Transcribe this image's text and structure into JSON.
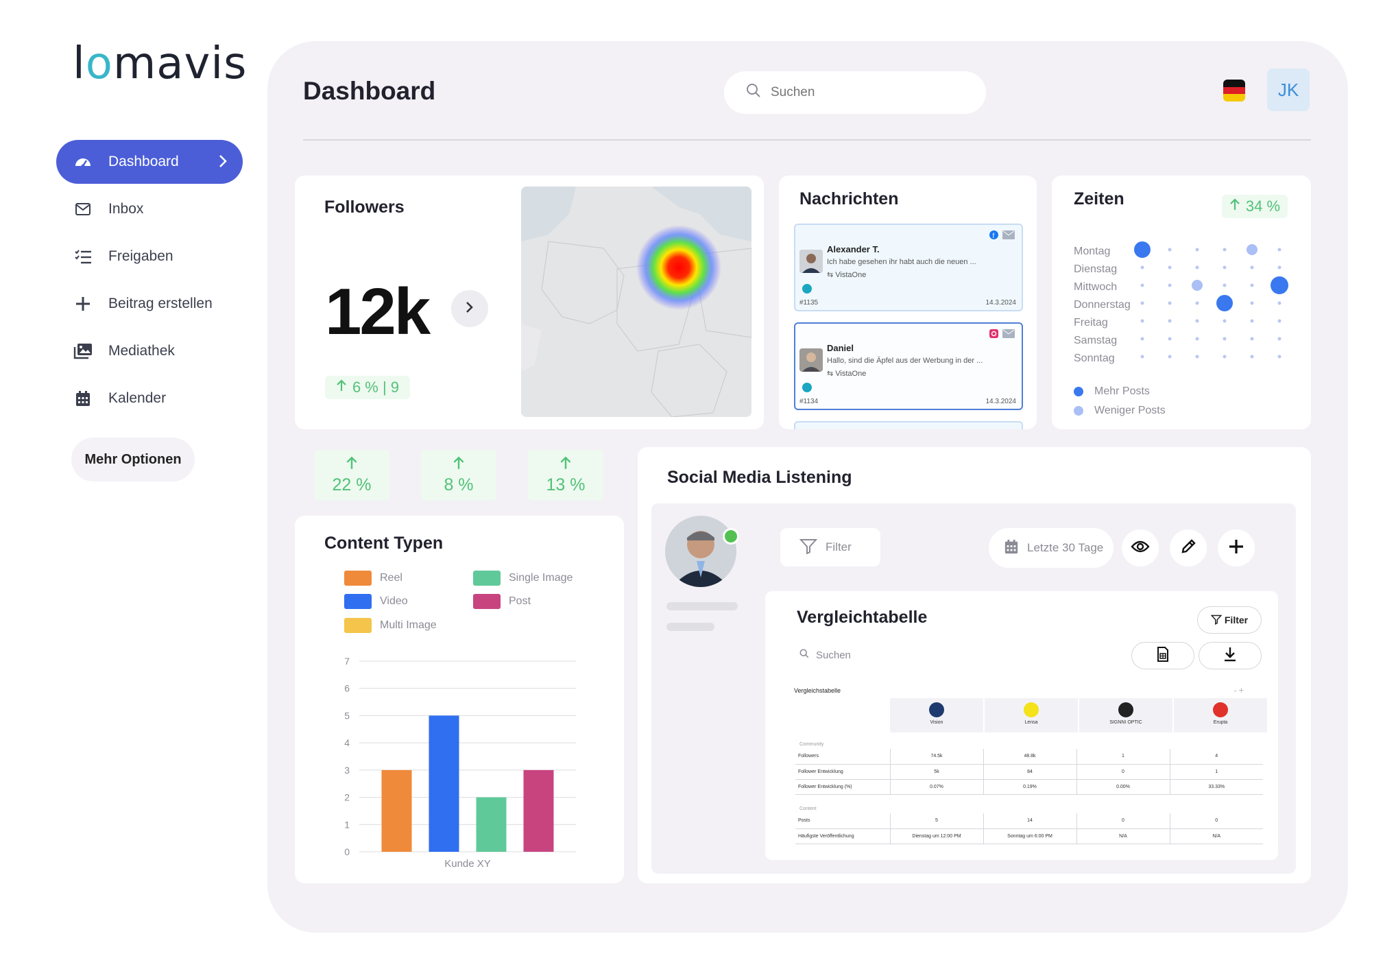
{
  "brand": {
    "logo_text_a": "l",
    "logo_text_o": "o",
    "logo_text_b": "mavis"
  },
  "sidebar": {
    "items": [
      {
        "label": "Dashboard",
        "icon": "gauge-icon",
        "active": true
      },
      {
        "label": "Inbox",
        "icon": "mail-icon"
      },
      {
        "label": "Freigaben",
        "icon": "checklist-icon"
      },
      {
        "label": "Beitrag erstellen",
        "icon": "plus-icon"
      },
      {
        "label": "Mediathek",
        "icon": "gallery-icon"
      },
      {
        "label": "Kalender",
        "icon": "calendar-icon"
      }
    ],
    "more_label": "Mehr Optionen"
  },
  "header": {
    "title": "Dashboard",
    "search_placeholder": "Suchen",
    "user_initials": "JK",
    "language": "de"
  },
  "followers": {
    "title": "Followers",
    "value": "12k",
    "trend": "6 % | 9"
  },
  "stats": [
    "22 %",
    "8 %",
    "13 %"
  ],
  "messages": {
    "title": "Nachrichten",
    "items": [
      {
        "name": "Alexander T.",
        "text": "Ich habe gesehen ihr habt auch die neuen ...",
        "source": "VistaOne",
        "id": "#1135",
        "date": "14.3.2024",
        "network": "facebook"
      },
      {
        "name": "Daniel",
        "text": "Hallo, sind die Äpfel aus der Werbung in der ...",
        "source": "VistaOne",
        "id": "#1134",
        "date": "14.3.2024",
        "network": "instagram"
      }
    ]
  },
  "zeiten": {
    "title": "Zeiten",
    "trend": "34 %",
    "days": [
      "Montag",
      "Dienstag",
      "Mittwoch",
      "Donnerstag",
      "Freitag",
      "Samstag",
      "Sonntag"
    ],
    "legend": [
      "Mehr Posts",
      "Weniger Posts"
    ],
    "colors": {
      "more": "#3a78f0",
      "less": "#a9bff5"
    }
  },
  "content_types": {
    "title": "Content Typen",
    "legend": [
      {
        "label": "Reel",
        "color": "#ef8a3a"
      },
      {
        "label": "Single Image",
        "color": "#5fc999"
      },
      {
        "label": "Video",
        "color": "#2f6ff0"
      },
      {
        "label": "Post",
        "color": "#c8447f"
      },
      {
        "label": "Multi Image",
        "color": "#f4c54a"
      }
    ]
  },
  "chart_data": {
    "type": "bar",
    "categories": [
      "Kunde XY"
    ],
    "series": [
      {
        "name": "Reel",
        "values": [
          3
        ]
      },
      {
        "name": "Video",
        "values": [
          5
        ]
      },
      {
        "name": "Single Image",
        "values": [
          2
        ]
      },
      {
        "name": "Post",
        "values": [
          3
        ]
      }
    ],
    "xlabel": "Kunde XY",
    "ylim": [
      0,
      7
    ],
    "yticks": [
      "0",
      "1",
      "2",
      "3",
      "4",
      "5",
      "6",
      "7"
    ],
    "grid": true
  },
  "listening": {
    "title": "Social Media Listening",
    "filter_label": "Filter",
    "range_label": "Letzte 30 Tage",
    "table": {
      "title": "Vergleichtabelle",
      "filter_label": "Filter",
      "search_placeholder": "Suchen",
      "small_title": "Vergleichstabelle",
      "brands": [
        {
          "name": "Vision",
          "color": "#1f3a6e"
        },
        {
          "name": "Lensa",
          "color": "#f4e21a"
        },
        {
          "name": "SIGNNI OPTIC",
          "color": "#222222"
        },
        {
          "name": "Erupta",
          "color": "#e0312b"
        }
      ],
      "community_label": "Community",
      "content_label": "Content",
      "community_rows": [
        {
          "label": "Followers",
          "values": [
            "74.5k",
            "48.8k",
            "1",
            "4"
          ]
        },
        {
          "label": "Follower Entwicklung",
          "values": [
            "5k",
            "84",
            "0",
            "1"
          ]
        },
        {
          "label": "Follower Entwicklung (%)",
          "values": [
            "0.07%",
            "0.19%",
            "0.00%",
            "33.33%"
          ]
        }
      ],
      "content_rows": [
        {
          "label": "Posts",
          "values": [
            "5",
            "14",
            "0",
            "0"
          ]
        },
        {
          "label": "Häufigste Veröffentlichung",
          "values": [
            "Dienstag um 12:00 PM",
            "Sonntag um 6:00 PM",
            "N/A",
            "N/A"
          ]
        }
      ]
    }
  }
}
